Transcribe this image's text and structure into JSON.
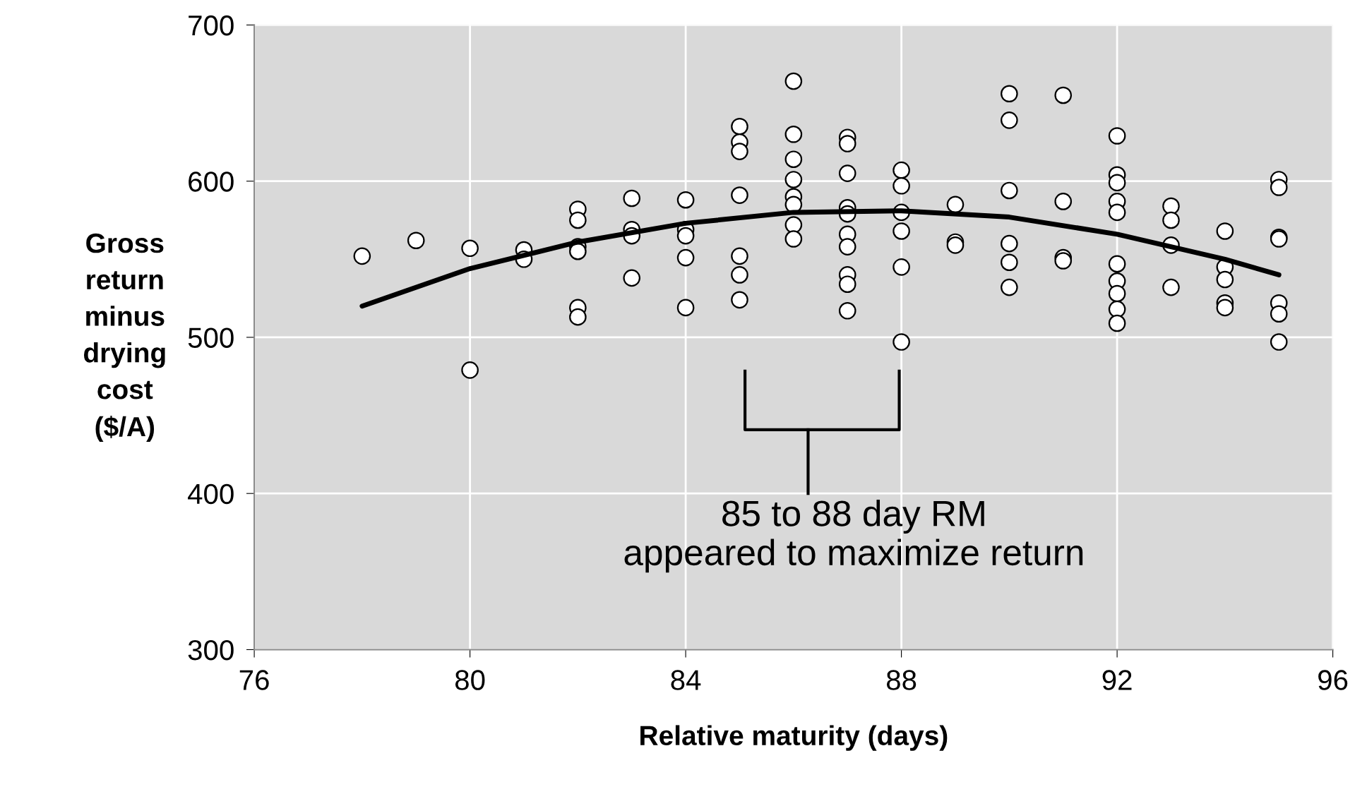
{
  "chart_data": {
    "type": "scatter",
    "xlabel": "Relative maturity (days)",
    "ylabel": "Gross\nreturn\nminus\ndrying\ncost\n($/A)",
    "xlim": [
      76,
      96
    ],
    "xticks": [
      76,
      80,
      84,
      88,
      92,
      96
    ],
    "ylim": [
      300,
      700
    ],
    "yticks": [
      300,
      400,
      500,
      600,
      700
    ],
    "grid": true,
    "marker": "circle",
    "series": [
      {
        "color": "#ffffff",
        "x": [
          78,
          79,
          80,
          80,
          81,
          81,
          82,
          82,
          82,
          82,
          82,
          82,
          83,
          83,
          83,
          83,
          84,
          84,
          84,
          84,
          84,
          85,
          85,
          85,
          85,
          85,
          85,
          85,
          86,
          86,
          86,
          86,
          86,
          86,
          86,
          86,
          87,
          87,
          87,
          87,
          87,
          87,
          87,
          87,
          87,
          87,
          88,
          88,
          88,
          88,
          88,
          88,
          89,
          89,
          89,
          90,
          90,
          90,
          90,
          90,
          90,
          91,
          91,
          91,
          91,
          92,
          92,
          92,
          92,
          92,
          92,
          92,
          92,
          92,
          92,
          93,
          93,
          93,
          93,
          94,
          94,
          94,
          94,
          94,
          95,
          95,
          95,
          95,
          95,
          95,
          95
        ],
        "values": [
          552,
          562,
          557,
          479,
          556,
          550,
          582,
          575,
          558,
          555,
          519,
          513,
          589,
          569,
          565,
          538,
          588,
          569,
          565,
          551,
          519,
          635,
          625,
          619,
          591,
          552,
          540,
          524,
          664,
          630,
          614,
          601,
          590,
          585,
          572,
          563,
          628,
          624,
          605,
          583,
          579,
          566,
          558,
          540,
          534,
          517,
          607,
          597,
          580,
          568,
          545,
          497,
          585,
          561,
          559,
          656,
          639,
          594,
          560,
          548,
          532,
          655,
          587,
          551,
          549,
          629,
          604,
          599,
          587,
          580,
          547,
          536,
          528,
          518,
          509,
          584,
          575,
          559,
          532,
          568,
          545,
          537,
          522,
          519,
          601,
          596,
          564,
          563,
          522,
          515,
          497
        ]
      },
      {
        "type": "line",
        "color": "#000000",
        "marker": "none",
        "x": [
          78,
          80,
          82,
          84,
          86,
          88,
          90,
          92,
          94,
          95
        ],
        "values": [
          520,
          544,
          561,
          573,
          580,
          581,
          577,
          566,
          550,
          540
        ]
      }
    ],
    "annotations": [
      "85 to 88 day RM\nappeared to maximize return"
    ]
  }
}
